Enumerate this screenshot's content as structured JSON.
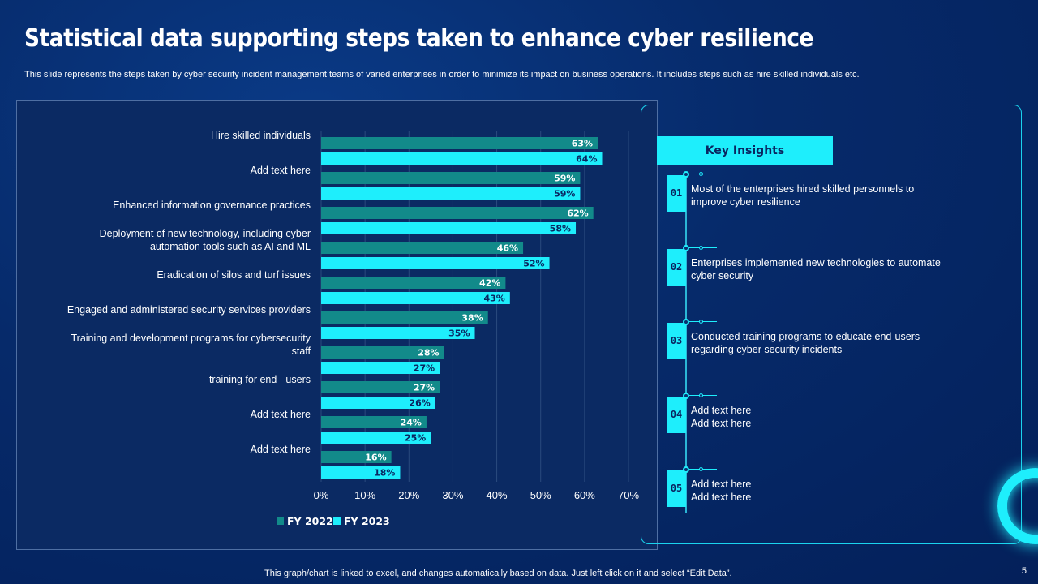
{
  "title": "Statistical data supporting steps taken to enhance cyber resilience",
  "subtitle": "This slide represents the steps taken by cyber security incident management teams of varied enterprises in order to minimize its impact on business operations. It includes steps such as hire skilled individuals etc.",
  "colors": {
    "fy2022": "#128a8a",
    "fy2023": "#1eeefc",
    "background": "#062a6a"
  },
  "chart_data": {
    "type": "bar",
    "orientation": "horizontal",
    "categories": [
      "Hire skilled individuals",
      "Add text here",
      "Enhanced information governance practices",
      "Deployment of new technology, including cyber automation tools such as AI and ML",
      "Eradication of silos and turf issues",
      "Engaged and administered security services providers",
      "Training and development programs for cybersecurity staff",
      "training for end - users",
      "Add text here",
      "Add text here"
    ],
    "series": [
      {
        "name": "FY 2022",
        "values": [
          63,
          59,
          62,
          46,
          42,
          38,
          28,
          27,
          24,
          16
        ]
      },
      {
        "name": "FY 2023",
        "values": [
          64,
          59,
          58,
          52,
          43,
          35,
          27,
          26,
          25,
          18
        ]
      }
    ],
    "data_labels": [
      [
        "63%",
        "59%",
        "62%",
        "46%",
        "42%",
        "38%",
        "28%",
        "27%",
        "24%",
        "16%"
      ],
      [
        "64%",
        "59%",
        "58%",
        "52%",
        "43%",
        "35%",
        "27%",
        "26%",
        "25%",
        "18%"
      ]
    ],
    "xlim": [
      0,
      70
    ],
    "xticks": [
      "0%",
      "10%",
      "20%",
      "30%",
      "40%",
      "50%",
      "60%",
      "70%"
    ],
    "grid": true,
    "legend_position": "bottom-left"
  },
  "insights": {
    "header": "Key Insights",
    "items": [
      {
        "num": "01",
        "text": "Most of the enterprises hired skilled personnels to improve cyber resilience"
      },
      {
        "num": "02",
        "text": "Enterprises implemented new technologies to automate cyber security"
      },
      {
        "num": "03",
        "text": "Conducted training programs to educate end-users regarding cyber security incidents"
      },
      {
        "num": "04",
        "text": "Add text here\nAdd text here"
      },
      {
        "num": "05",
        "text": "Add text here\nAdd text here"
      }
    ]
  },
  "footnote": "This graph/chart is linked to excel, and changes automatically based on data. Just left click on it and select “Edit Data”.",
  "page_number": "5"
}
